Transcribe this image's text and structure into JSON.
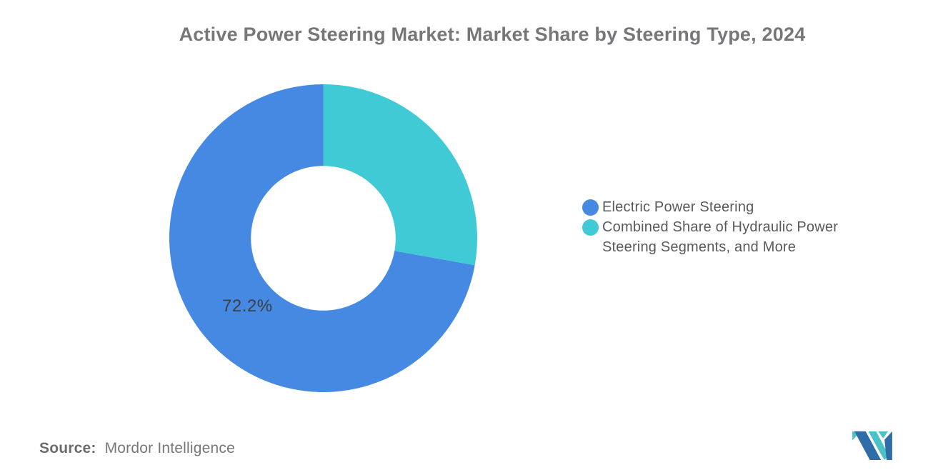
{
  "chart_data": {
    "type": "pie",
    "subtype": "donut",
    "title": "Active Power Steering Market: Market Share by Steering Type, 2024",
    "start_angle": "top",
    "direction": "counterclockwise",
    "legend_position": "right",
    "inner_radius_ratio": 0.47,
    "grid": false,
    "slices": [
      {
        "label": "Electric Power Steering",
        "value": 72.2,
        "unit": "%",
        "color": "#4589E2",
        "data_label": "72.2%"
      },
      {
        "label": "Combined Share of Hydraulic Power Steering Segments, and More",
        "value": 27.8,
        "unit": "%",
        "color": "#3FCAD6",
        "data_label": ""
      }
    ]
  },
  "source": {
    "prefix": "Source:",
    "name": "Mordor Intelligence"
  },
  "logo": {
    "alt": "Mordor Intelligence logo",
    "blue": "#2E6DA8",
    "teal": "#4CC2C6"
  },
  "colors": {
    "background": "#FFFFFF",
    "title_text": "#76777B",
    "legend_text": "#58595C",
    "data_label_text": "#3D4043",
    "source_text": "#77787A"
  }
}
